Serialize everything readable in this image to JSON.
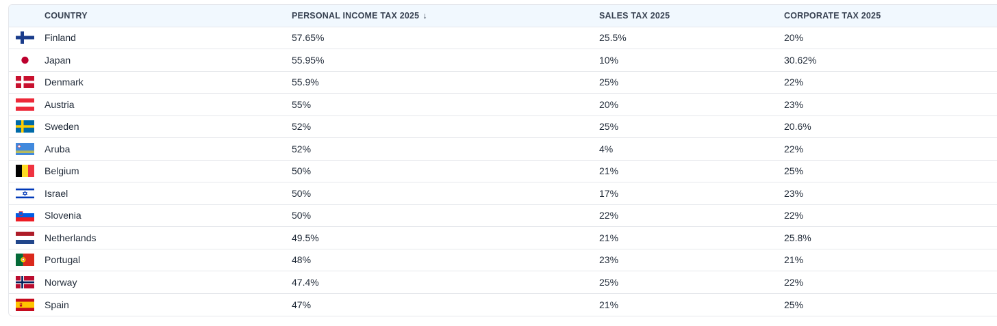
{
  "table": {
    "headers": {
      "country": "COUNTRY",
      "personal_income_tax": "PERSONAL INCOME TAX 2025",
      "sales_tax": "SALES TAX 2025",
      "corporate_tax": "CORPORATE TAX 2025"
    },
    "sort_indicator": "↓",
    "rows": [
      {
        "flag": "finland-flag-icon",
        "country": "Finland",
        "personal_income_tax": "57.65%",
        "sales_tax": "25.5%",
        "corporate_tax": "20%"
      },
      {
        "flag": "japan-flag-icon",
        "country": "Japan",
        "personal_income_tax": "55.95%",
        "sales_tax": "10%",
        "corporate_tax": "30.62%"
      },
      {
        "flag": "denmark-flag-icon",
        "country": "Denmark",
        "personal_income_tax": "55.9%",
        "sales_tax": "25%",
        "corporate_tax": "22%"
      },
      {
        "flag": "austria-flag-icon",
        "country": "Austria",
        "personal_income_tax": "55%",
        "sales_tax": "20%",
        "corporate_tax": "23%"
      },
      {
        "flag": "sweden-flag-icon",
        "country": "Sweden",
        "personal_income_tax": "52%",
        "sales_tax": "25%",
        "corporate_tax": "20.6%"
      },
      {
        "flag": "aruba-flag-icon",
        "country": "Aruba",
        "personal_income_tax": "52%",
        "sales_tax": "4%",
        "corporate_tax": "22%"
      },
      {
        "flag": "belgium-flag-icon",
        "country": "Belgium",
        "personal_income_tax": "50%",
        "sales_tax": "21%",
        "corporate_tax": "25%"
      },
      {
        "flag": "israel-flag-icon",
        "country": "Israel",
        "personal_income_tax": "50%",
        "sales_tax": "17%",
        "corporate_tax": "23%"
      },
      {
        "flag": "slovenia-flag-icon",
        "country": "Slovenia",
        "personal_income_tax": "50%",
        "sales_tax": "22%",
        "corporate_tax": "22%"
      },
      {
        "flag": "netherlands-flag-icon",
        "country": "Netherlands",
        "personal_income_tax": "49.5%",
        "sales_tax": "21%",
        "corporate_tax": "25.8%"
      },
      {
        "flag": "portugal-flag-icon",
        "country": "Portugal",
        "personal_income_tax": "48%",
        "sales_tax": "23%",
        "corporate_tax": "21%"
      },
      {
        "flag": "norway-flag-icon",
        "country": "Norway",
        "personal_income_tax": "47.4%",
        "sales_tax": "25%",
        "corporate_tax": "22%"
      },
      {
        "flag": "spain-flag-icon",
        "country": "Spain",
        "personal_income_tax": "47%",
        "sales_tax": "21%",
        "corporate_tax": "25%"
      }
    ]
  }
}
